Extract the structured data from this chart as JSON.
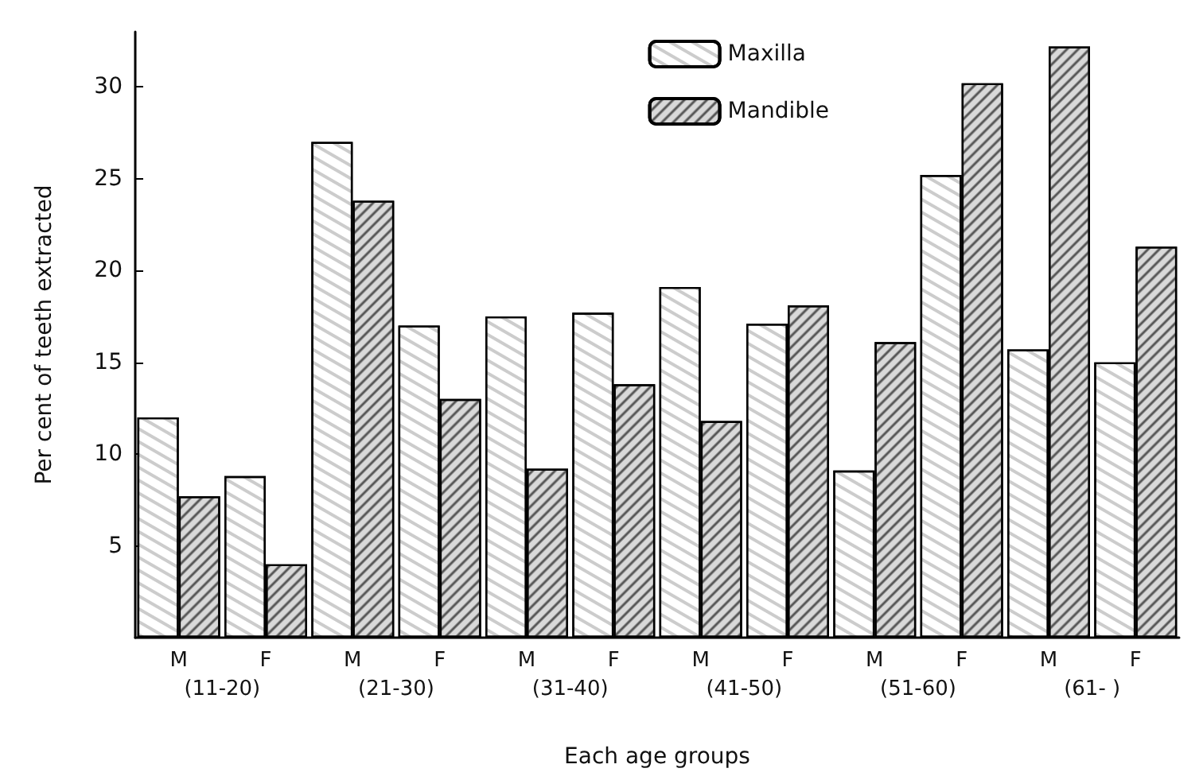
{
  "chart_data": {
    "type": "bar",
    "xlabel": "Each age groups",
    "ylabel": "Per cent of teeth extracted",
    "categories": [
      "M",
      "F",
      "M",
      "F",
      "M",
      "F",
      "M",
      "F",
      "M",
      "F",
      "M",
      "F"
    ],
    "series": [
      {
        "name": "Maxilla",
        "color": "#ffffff",
        "values": [
          12,
          8.8,
          27,
          17,
          17.5,
          17.7,
          19.1,
          17.1,
          9.1,
          25.2,
          15.7,
          15
        ]
      },
      {
        "name": "Mandible",
        "color": "#d9d9d9",
        "values": [
          7.7,
          4,
          23.8,
          13,
          9.2,
          13.8,
          11.8,
          18.1,
          16.1,
          30.2,
          32.2,
          21.3
        ]
      }
    ],
    "annotations": [
      "(11-20)",
      "(21-30)",
      "(31-40)",
      "(41-50)",
      "(51-60)",
      "(61- )"
    ],
    "ylim": [
      0,
      33
    ],
    "yticks": [
      5,
      10,
      15,
      20,
      25,
      30
    ],
    "grid": false,
    "legend": "top right"
  }
}
